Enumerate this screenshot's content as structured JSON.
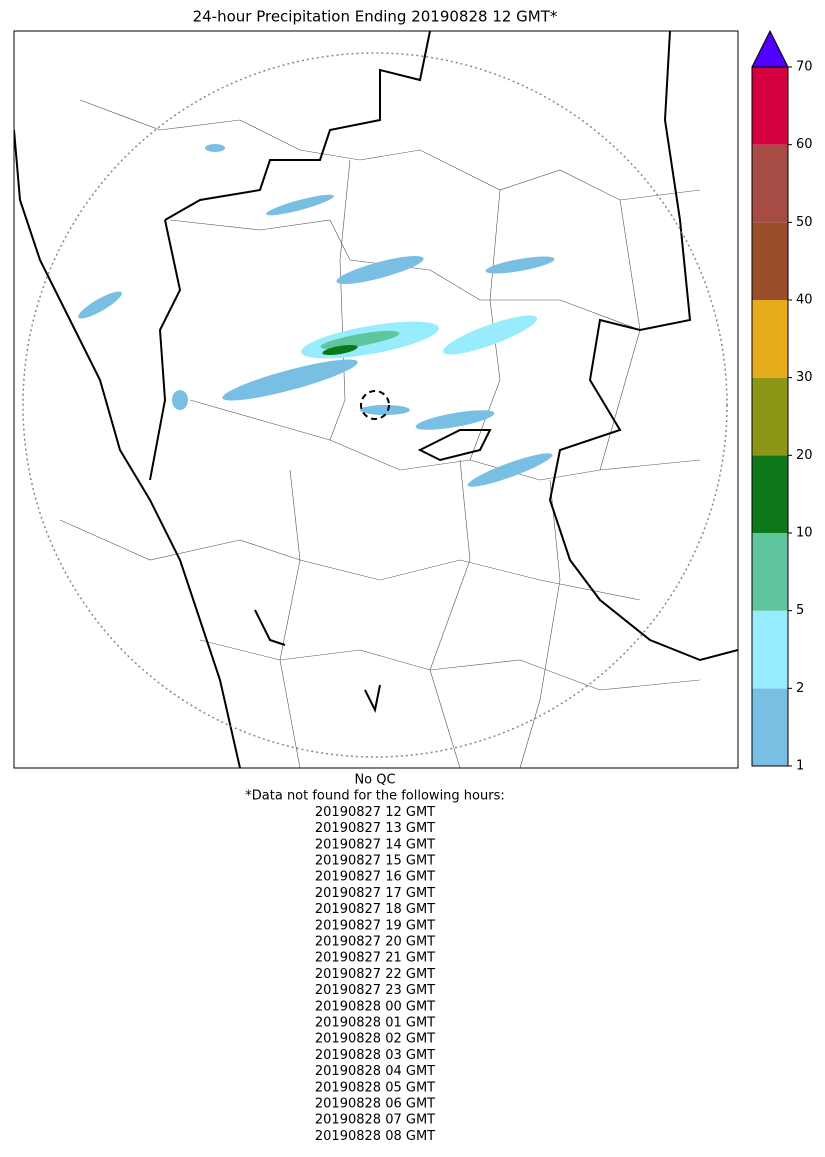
{
  "title": "24-hour Precipitation Ending 20190828 12 GMT*",
  "colorbar": {
    "levels": [
      1,
      2,
      5,
      10,
      20,
      30,
      40,
      50,
      60,
      70
    ],
    "colors": [
      "#78bfe3",
      "#97edfe",
      "#5ec59c",
      "#0e771a",
      "#8c9718",
      "#e7ac1c",
      "#9a4e2a",
      "#a64c44",
      "#d5003f"
    ],
    "extend_color": "#5000ff"
  },
  "notes": [
    "No QC",
    "*Data not found for the following hours:",
    "20190827 12 GMT",
    "20190827 13 GMT",
    "20190827 14 GMT",
    "20190827 15 GMT",
    "20190827 16 GMT",
    "20190827 17 GMT",
    "20190827 18 GMT",
    "20190827 19 GMT",
    "20190827 20 GMT",
    "20190827 21 GMT",
    "20190827 22 GMT",
    "20190827 23 GMT",
    "20190828 00 GMT",
    "20190828 01 GMT",
    "20190828 02 GMT",
    "20190828 03 GMT",
    "20190828 04 GMT",
    "20190828 05 GMT",
    "20190828 06 GMT",
    "20190828 07 GMT",
    "20190828 08 GMT"
  ]
}
